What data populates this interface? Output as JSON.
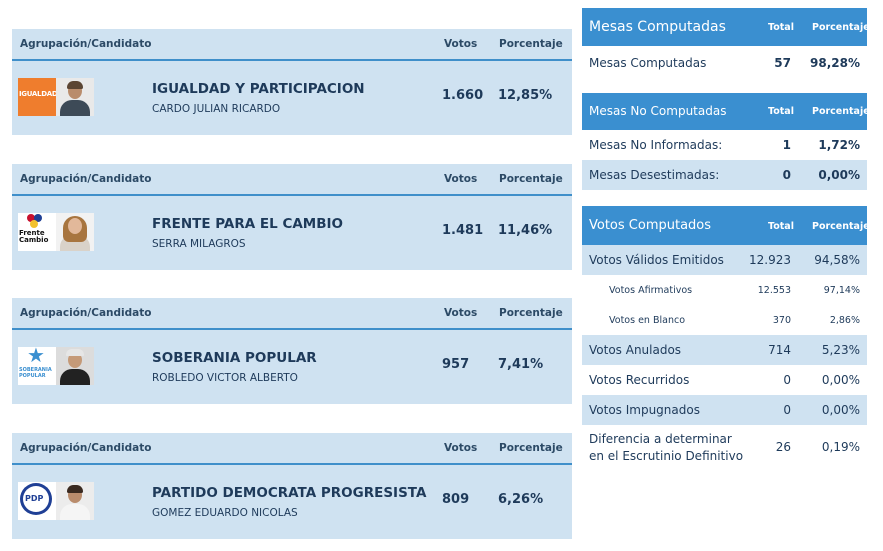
{
  "columns": {
    "group": "Agrupación/Candidato",
    "votes": "Votos",
    "percent": "Porcentaje"
  },
  "candidates": [
    {
      "party": "IGUALDAD Y PARTICIPACION",
      "candidate": "CARDO JULIAN RICARDO",
      "votes": "1.660",
      "percent": "12,85%",
      "logo_text": "IGUALDAD",
      "logo_color": "#ef7d2d"
    },
    {
      "party": "FRENTE PARA EL CAMBIO",
      "candidate": "SERRA MILAGROS",
      "votes": "1.481",
      "percent": "11,46%",
      "logo_text": "Frente Cambio",
      "logo_color": "#c8102e"
    },
    {
      "party": "SOBERANIA POPULAR",
      "candidate": "ROBLEDO VICTOR ALBERTO",
      "votes": "957",
      "percent": "7,41%",
      "logo_text": "SOBERANIA POPULAR",
      "logo_color": "#3a8fd0"
    },
    {
      "party": "PARTIDO DEMOCRATA PROGRESISTA",
      "candidate": "GOMEZ EDUARDO NICOLAS",
      "votes": "809",
      "percent": "6,26%",
      "logo_text": "PDP",
      "logo_color": "#1f3f95"
    }
  ],
  "mesas_computadas": {
    "title": "Mesas Computadas",
    "total_label": "Total",
    "percent_label": "Porcentaje",
    "rows": [
      {
        "label": "Mesas Computadas",
        "total": "57",
        "percent": "98,28%"
      }
    ]
  },
  "mesas_no_computadas": {
    "title": "Mesas No Computadas",
    "total_label": "Total",
    "percent_label": "Porcentaje",
    "rows": [
      {
        "label": "Mesas No Informadas:",
        "total": "1",
        "percent": "1,72%"
      },
      {
        "label": "Mesas Desestimadas:",
        "total": "0",
        "percent": "0,00%"
      }
    ]
  },
  "votos_computados": {
    "title": "Votos Computados",
    "total_label": "Total",
    "percent_label": "Porcentaje",
    "rows": [
      {
        "label": "Votos Válidos Emitidos",
        "total": "12.923",
        "percent": "94,58%"
      },
      {
        "label": "Votos Afirmativos",
        "total": "12.553",
        "percent": "97,14%"
      },
      {
        "label": "Votos en Blanco",
        "total": "370",
        "percent": "2,86%"
      },
      {
        "label": "Votos Anulados",
        "total": "714",
        "percent": "5,23%"
      },
      {
        "label": "Votos Recurridos",
        "total": "0",
        "percent": "0,00%"
      },
      {
        "label": "Votos Impugnados",
        "total": "0",
        "percent": "0,00%"
      },
      {
        "label": "Diferencia a determinar",
        "label2": "en el Escrutinio Definitivo",
        "total": "26",
        "percent": "0,19%"
      }
    ]
  }
}
